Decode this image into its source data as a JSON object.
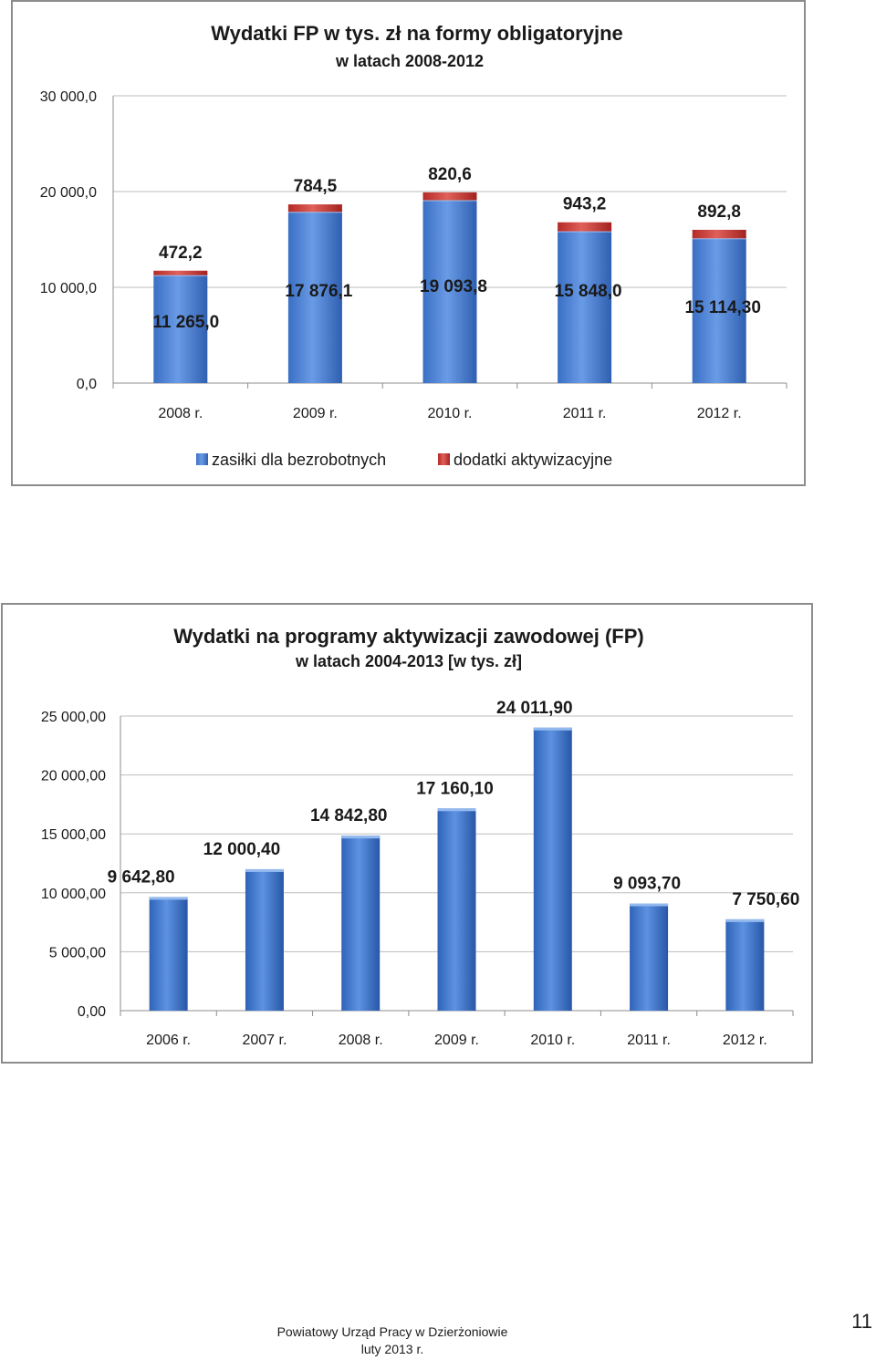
{
  "chart_data": [
    {
      "type": "bar",
      "stacked": true,
      "title": "Wydatki FP w tys. zł na formy obligatoryjne",
      "subtitle": "w latach 2008-2012",
      "categories": [
        "2008 r.",
        "2009 r.",
        "2010 r.",
        "2011 r.",
        "2012 r."
      ],
      "series": [
        {
          "name": "zasiłki dla bezrobotnych",
          "values": [
            11265.0,
            17876.1,
            19093.8,
            15848.0,
            15114.3
          ],
          "labels": [
            "11 265,0",
            "17 876,1",
            "19 093,8",
            "15 848,0",
            "15 114,30"
          ],
          "color": "#4f86d6"
        },
        {
          "name": "dodatki aktywizacyjne",
          "values": [
            472.2,
            784.5,
            820.6,
            943.2,
            892.8
          ],
          "labels": [
            "472,2",
            "784,5",
            "820,6",
            "943,2",
            "892,8"
          ],
          "color": "#c9302c"
        }
      ],
      "ylim": [
        0,
        30000
      ],
      "yticks": [
        0,
        10000,
        20000,
        30000
      ],
      "ytick_labels": [
        "0,0",
        "10 000,0",
        "20 000,0",
        "30 000,0"
      ],
      "grid": true,
      "legend": "bottom"
    },
    {
      "type": "bar",
      "title": "Wydatki na programy aktywizacji zawodowej (FP)",
      "subtitle": "w latach 2004-2013 [w tys. zł]",
      "categories": [
        "2006 r.",
        "2007 r.",
        "2008 r.",
        "2009 r.",
        "2010 r.",
        "2011 r.",
        "2012 r."
      ],
      "values": [
        9642.8,
        12000.4,
        14842.8,
        17160.1,
        24011.9,
        9093.7,
        7750.6
      ],
      "labels": [
        "9 642,80",
        "12 000,40",
        "14 842,80",
        "17 160,10",
        "24 011,90",
        "9 093,70",
        "7 750,60"
      ],
      "color": "#3f78cf",
      "ylim": [
        0,
        25000
      ],
      "yticks": [
        0,
        5000,
        10000,
        15000,
        20000,
        25000
      ],
      "ytick_labels": [
        "0,00",
        "5 000,00",
        "10 000,00",
        "15 000,00",
        "20 000,00",
        "25 000,00"
      ],
      "grid": true
    }
  ],
  "footer": {
    "organization": "Powiatowy Urząd Pracy w Dzierżoniowie",
    "date": "luty 2013 r.",
    "page_number": "11"
  }
}
